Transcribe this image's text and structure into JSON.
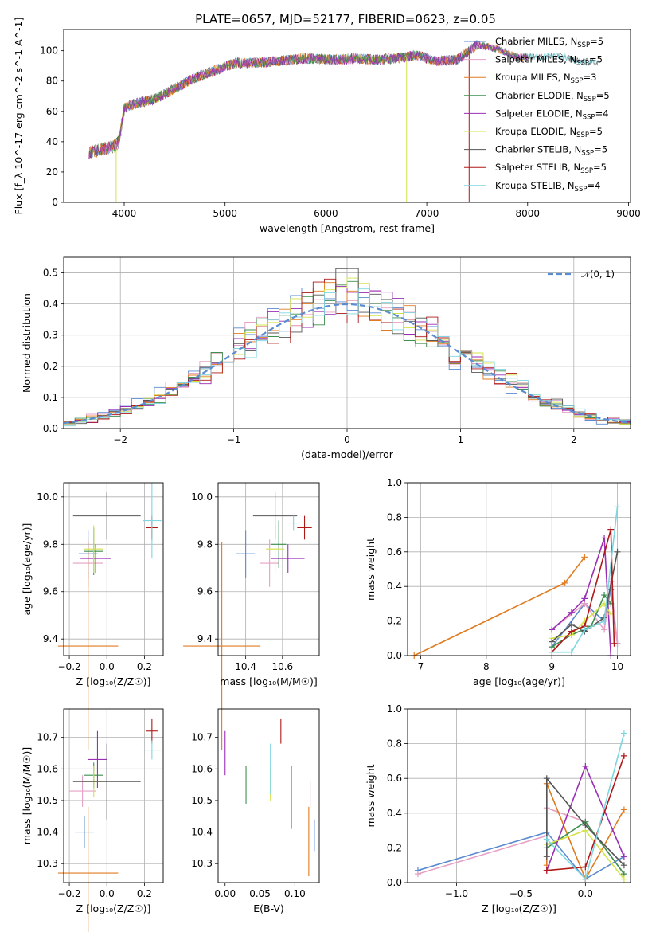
{
  "title": "PLATE=0657, MJD=52177, FIBERID=0623, z=0.05",
  "colors": {
    "Chabrier MILES": "#5b8bd0",
    "Salpeter MILES": "#e6a0c4",
    "Kroupa MILES": "#e07b20",
    "Chabrier ELODIE": "#3f8f4f",
    "Salpeter ELODIE": "#9a2fb5",
    "Kroupa ELODIE": "#d4e34a",
    "Chabrier STELIB": "#555555",
    "Salpeter STELIB": "#b01818",
    "Kroupa STELIB": "#7fd6e0"
  },
  "chart_data": [
    {
      "id": "spectrum",
      "type": "line",
      "xlabel": "wavelength [Angstrom, rest frame]",
      "ylabel": "Flux [f_λ 10^-17 erg cm^-2 s^-1 A^-1]",
      "xlim": [
        3400,
        9020
      ],
      "ylim": [
        0,
        114
      ],
      "xticks": [
        "4000",
        "5000",
        "6000",
        "7000",
        "8000",
        "9000"
      ],
      "yticks": [
        "0",
        "20",
        "40",
        "60",
        "80",
        "100"
      ],
      "legend_position": "top-right",
      "legend": [
        "Chabrier MILES, N_SSP=5",
        "Salpeter MILES, N_SSP=5",
        "Kroupa MILES, N_SSP=3",
        "Chabrier ELODIE, N_SSP=5",
        "Salpeter ELODIE, N_SSP=4",
        "Kroupa ELODIE, N_SSP=5",
        "Chabrier STELIB, N_SSP=5",
        "Salpeter STELIB, N_SSP=5",
        "Kroupa STELIB, N_SSP=4"
      ],
      "envelope": {
        "x": [
          3650,
          3900,
          3950,
          4000,
          4100,
          4300,
          4500,
          4700,
          4900,
          5100,
          5300,
          5500,
          5800,
          6100,
          6300,
          6500,
          6700,
          6900,
          7100,
          7300,
          7500,
          7700,
          7900,
          8100,
          8300,
          8500,
          8700
        ],
        "y": [
          33,
          37,
          40,
          62,
          65,
          68,
          75,
          82,
          87,
          92,
          92,
          93,
          95,
          94,
          95,
          94,
          95,
          97,
          93,
          94,
          104,
          101,
          96,
          96,
          97,
          93,
          92
        ]
      },
      "model_range": {
        "Chabrier STELIB": [
          3650,
          8700
        ],
        "Kroupa STELIB": [
          3650,
          8700
        ],
        "Kroupa ELODIE": [
          3900,
          6800
        ],
        "Salpeter STELIB": [
          3650,
          7420
        ]
      }
    },
    {
      "id": "residuals",
      "type": "histogram",
      "xlabel": "(data-model)/error",
      "ylabel": "Normed distribution",
      "xlim": [
        -2.5,
        2.5
      ],
      "ylim": [
        0,
        0.55
      ],
      "xticks": [
        "−2",
        "−1",
        "0",
        "1",
        "2"
      ],
      "yticks": [
        "0.0",
        "0.1",
        "0.2",
        "0.3",
        "0.4",
        "0.5"
      ],
      "grid": true,
      "legend": [
        "𝒩(0, 1)"
      ],
      "legend_position": "top-right",
      "reference": "N(0,1) gaussian"
    },
    {
      "id": "age_vs_Z",
      "type": "scatter",
      "xlabel": "Z [log₁₀(Z/Z☉)]",
      "ylabel": "age [log₁₀(age/yr)]",
      "xlim": [
        -0.23,
        0.3
      ],
      "ylim": [
        9.33,
        10.06
      ],
      "xticks": [
        "−0.2",
        "0.0",
        "0.2"
      ],
      "yticks": [
        "9.4",
        "9.6",
        "9.8",
        "10.0"
      ],
      "grid": true,
      "points": [
        {
          "model": "Chabrier MILES",
          "x": -0.1,
          "xerr": 0.05,
          "y": 9.76,
          "yerr": 0.1
        },
        {
          "model": "Salpeter MILES",
          "x": -0.1,
          "xerr": 0.08,
          "y": 9.72,
          "yerr": 0.1
        },
        {
          "model": "Kroupa MILES",
          "x": -0.1,
          "xerr": 0.16,
          "y": 9.37,
          "yerr": 0.44
        },
        {
          "model": "Chabrier ELODIE",
          "x": -0.07,
          "xerr": 0.05,
          "y": 9.77,
          "yerr": 0.1
        },
        {
          "model": "Salpeter ELODIE",
          "x": -0.06,
          "xerr": 0.08,
          "y": 9.74,
          "yerr": 0.06
        },
        {
          "model": "Kroupa ELODIE",
          "x": -0.07,
          "xerr": 0.05,
          "y": 9.78,
          "yerr": 0.1
        },
        {
          "model": "Chabrier STELIB",
          "x": 0.0,
          "xerr": 0.18,
          "y": 9.92,
          "yerr": 0.1
        },
        {
          "model": "Salpeter STELIB",
          "x": 0.24,
          "xerr": 0.03,
          "y": 9.87,
          "yerr": 0.05
        },
        {
          "model": "Kroupa STELIB",
          "x": 0.24,
          "xerr": 0.05,
          "y": 9.9,
          "yerr": 0.16
        }
      ]
    },
    {
      "id": "age_vs_mass",
      "type": "scatter",
      "xlabel": "mass [log₁₀(M/M☉)]",
      "ylabel": "",
      "xlim": [
        10.25,
        10.8
      ],
      "ylim": [
        9.33,
        10.06
      ],
      "xticks": [
        "10.4",
        "10.6"
      ],
      "yticks": [
        "9.4",
        "9.6",
        "9.8",
        "10.0"
      ],
      "grid": true,
      "points": [
        {
          "model": "Chabrier MILES",
          "x": 10.4,
          "xerr": 0.05,
          "y": 9.76,
          "yerr": 0.1
        },
        {
          "model": "Salpeter MILES",
          "x": 10.53,
          "xerr": 0.05,
          "y": 9.72,
          "yerr": 0.1
        },
        {
          "model": "Kroupa MILES",
          "x": 10.27,
          "xerr": 0.21,
          "y": 9.37,
          "yerr": 0.44
        },
        {
          "model": "Chabrier ELODIE",
          "x": 10.58,
          "xerr": 0.04,
          "y": 9.8,
          "yerr": 0.1
        },
        {
          "model": "Salpeter ELODIE",
          "x": 10.63,
          "xerr": 0.09,
          "y": 9.74,
          "yerr": 0.06
        },
        {
          "model": "Kroupa ELODIE",
          "x": 10.56,
          "xerr": 0.05,
          "y": 9.78,
          "yerr": 0.1
        },
        {
          "model": "Chabrier STELIB",
          "x": 10.56,
          "xerr": 0.12,
          "y": 9.92,
          "yerr": 0.1
        },
        {
          "model": "Salpeter STELIB",
          "x": 10.72,
          "xerr": 0.04,
          "y": 9.87,
          "yerr": 0.05
        },
        {
          "model": "Kroupa STELIB",
          "x": 10.66,
          "xerr": 0.03,
          "y": 9.89,
          "yerr": 0.03
        }
      ]
    },
    {
      "id": "weight_vs_age",
      "type": "line",
      "xlabel": "age [log₁₀(age/yr)]",
      "ylabel": "mass weight",
      "xlim": [
        6.8,
        10.2
      ],
      "ylim": [
        0,
        1.0
      ],
      "xticks": [
        "7",
        "8",
        "9",
        "10"
      ],
      "yticks": [
        "0.0",
        "0.2",
        "0.4",
        "0.6",
        "0.8",
        "1.0"
      ],
      "grid": true,
      "series": [
        {
          "name": "Chabrier MILES",
          "x": [
            9.0,
            9.5,
            9.8,
            9.9,
            10.0
          ],
          "y": [
            0.05,
            0.3,
            0.2,
            0.38,
            0.07
          ]
        },
        {
          "name": "Salpeter MILES",
          "x": [
            9.0,
            9.5,
            9.8,
            9.9,
            10.0
          ],
          "y": [
            0.15,
            0.3,
            0.15,
            0.43,
            0.07
          ]
        },
        {
          "name": "Kroupa MILES",
          "x": [
            6.9,
            9.2,
            9.5
          ],
          "y": [
            0.0,
            0.42,
            0.57
          ]
        },
        {
          "name": "Chabrier ELODIE",
          "x": [
            9.0,
            9.3,
            9.6,
            9.8,
            9.9
          ],
          "y": [
            0.05,
            0.12,
            0.17,
            0.35,
            0.3
          ]
        },
        {
          "name": "Salpeter ELODIE",
          "x": [
            9.0,
            9.3,
            9.5,
            9.8,
            9.9
          ],
          "y": [
            0.15,
            0.25,
            0.33,
            0.68,
            0.0
          ]
        },
        {
          "name": "Kroupa ELODIE",
          "x": [
            9.0,
            9.3,
            9.5,
            9.8,
            9.9
          ],
          "y": [
            0.1,
            0.12,
            0.2,
            0.3,
            0.24
          ]
        },
        {
          "name": "Chabrier STELIB",
          "x": [
            9.0,
            9.3,
            9.5,
            9.8,
            10.0
          ],
          "y": [
            0.08,
            0.18,
            0.14,
            0.22,
            0.6
          ]
        },
        {
          "name": "Salpeter STELIB",
          "x": [
            9.0,
            9.3,
            9.5,
            9.9,
            9.95
          ],
          "y": [
            0.02,
            0.14,
            0.17,
            0.73,
            0.07
          ]
        },
        {
          "name": "Kroupa STELIB",
          "x": [
            9.0,
            9.3,
            9.5,
            9.8,
            10.0
          ],
          "y": [
            0.02,
            0.02,
            0.15,
            0.2,
            0.86
          ]
        }
      ]
    },
    {
      "id": "mass_vs_Z",
      "type": "scatter",
      "xlabel": "Z [log₁₀(Z/Z☉)]",
      "ylabel": "mass [log₁₀(M/M☉)]",
      "xlim": [
        -0.23,
        0.3
      ],
      "ylim": [
        10.24,
        10.79
      ],
      "xticks": [
        "−0.2",
        "0.0",
        "0.2"
      ],
      "yticks": [
        "10.3",
        "10.4",
        "10.5",
        "10.6",
        "10.7"
      ],
      "grid": true,
      "points": [
        {
          "model": "Chabrier MILES",
          "x": -0.12,
          "xerr": 0.05,
          "y": 10.4,
          "yerr": 0.05
        },
        {
          "model": "Salpeter MILES",
          "x": -0.13,
          "xerr": 0.07,
          "y": 10.53,
          "yerr": 0.05
        },
        {
          "model": "Kroupa MILES",
          "x": -0.1,
          "xerr": 0.16,
          "y": 10.27,
          "yerr": 0.21
        },
        {
          "model": "Chabrier ELODIE",
          "x": -0.07,
          "xerr": 0.05,
          "y": 10.58,
          "yerr": 0.04
        },
        {
          "model": "Salpeter ELODIE",
          "x": -0.05,
          "xerr": 0.05,
          "y": 10.63,
          "yerr": 0.09
        },
        {
          "model": "Kroupa ELODIE",
          "x": -0.07,
          "xerr": 0.05,
          "y": 10.56,
          "yerr": 0.05
        },
        {
          "model": "Chabrier STELIB",
          "x": 0.0,
          "xerr": 0.18,
          "y": 10.56,
          "yerr": 0.12
        },
        {
          "model": "Salpeter STELIB",
          "x": 0.24,
          "xerr": 0.03,
          "y": 10.72,
          "yerr": 0.04
        },
        {
          "model": "Kroupa STELIB",
          "x": 0.24,
          "xerr": 0.05,
          "y": 10.66,
          "yerr": 0.03
        }
      ]
    },
    {
      "id": "mass_vs_EBV",
      "type": "scatter",
      "xlabel": "E(B-V)",
      "ylabel": "",
      "xlim": [
        -0.01,
        0.135
      ],
      "ylim": [
        10.24,
        10.79
      ],
      "xticks": [
        "0.00",
        "0.05",
        "0.10"
      ],
      "yticks": [
        "10.3",
        "10.4",
        "10.5",
        "10.6",
        "10.7"
      ],
      "grid": false,
      "points": [
        {
          "model": "Salpeter ELODIE",
          "x": 0.0,
          "y": 10.65,
          "yerr": 0.07
        },
        {
          "model": "Chabrier ELODIE",
          "x": 0.03,
          "y": 10.55,
          "yerr": 0.06
        },
        {
          "model": "Kroupa ELODIE",
          "x": 0.065,
          "y": 10.55,
          "yerr": 0.05
        },
        {
          "model": "Kroupa STELIB",
          "x": 0.065,
          "y": 10.6,
          "yerr": 0.08
        },
        {
          "model": "Salpeter STELIB",
          "x": 0.08,
          "y": 10.72,
          "yerr": 0.04
        },
        {
          "model": "Chabrier STELIB",
          "x": 0.095,
          "y": 10.51,
          "yerr": 0.1
        },
        {
          "model": "Kroupa MILES",
          "x": 0.12,
          "y": 10.37,
          "yerr": 0.11
        },
        {
          "model": "Salpeter MILES",
          "x": 0.122,
          "y": 10.52,
          "yerr": 0.04
        },
        {
          "model": "Chabrier MILES",
          "x": 0.128,
          "y": 10.39,
          "yerr": 0.05
        }
      ]
    },
    {
      "id": "weight_vs_Z",
      "type": "line",
      "xlabel": "Z [log₁₀(Z/Z☉)]",
      "ylabel": "mass weight",
      "xlim": [
        -1.38,
        0.35
      ],
      "ylim": [
        0,
        1.0
      ],
      "xticks": [
        "−1.0",
        "−0.5",
        "0.0"
      ],
      "yticks": [
        "0.0",
        "0.2",
        "0.4",
        "0.6",
        "0.8",
        "1.0"
      ],
      "grid": true,
      "series": [
        {
          "name": "Chabrier MILES",
          "x": [
            -1.3,
            -0.3,
            0.0,
            0.3
          ],
          "y": [
            0.07,
            0.29,
            0.02,
            0.15
          ]
        },
        {
          "name": "Salpeter MILES",
          "x": [
            -1.3,
            -0.3,
            -0.3,
            0.0,
            0.3
          ],
          "y": [
            0.05,
            0.27,
            0.43,
            0.35,
            0.05
          ]
        },
        {
          "name": "Kroupa MILES",
          "x": [
            -0.3,
            -0.3,
            0.0,
            0.3
          ],
          "y": [
            0.1,
            0.57,
            0.02,
            0.42
          ]
        },
        {
          "name": "Chabrier ELODIE",
          "x": [
            -0.3,
            0.0,
            0.3
          ],
          "y": [
            0.2,
            0.35,
            0.05
          ]
        },
        {
          "name": "Salpeter ELODIE",
          "x": [
            -0.3,
            0.0,
            0.3
          ],
          "y": [
            0.07,
            0.67,
            0.15
          ]
        },
        {
          "name": "Kroupa ELODIE",
          "x": [
            -0.3,
            0.0,
            0.3
          ],
          "y": [
            0.22,
            0.3,
            0.02
          ]
        },
        {
          "name": "Chabrier STELIB",
          "x": [
            -0.3,
            -0.3,
            0.0,
            0.3
          ],
          "y": [
            0.15,
            0.6,
            0.33,
            0.1
          ]
        },
        {
          "name": "Salpeter STELIB",
          "x": [
            -0.3,
            0.0,
            0.3
          ],
          "y": [
            0.07,
            0.09,
            0.73
          ]
        },
        {
          "name": "Kroupa STELIB",
          "x": [
            -0.3,
            0.0,
            0.3
          ],
          "y": [
            0.25,
            0.02,
            0.86
          ]
        }
      ]
    }
  ]
}
